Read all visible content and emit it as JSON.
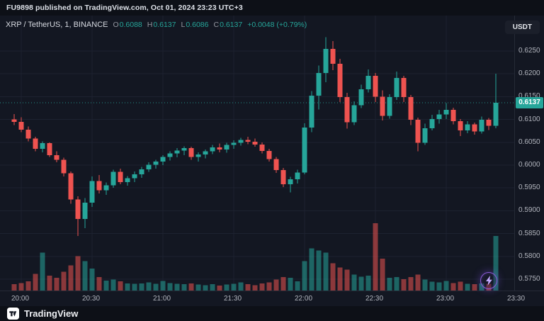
{
  "header": {
    "attribution": "FU9898 published on TradingView.com, Oct 01, 2024 23:23 UTC+3",
    "currency_button": "USDT"
  },
  "legend": {
    "symbol": "XRP / TetherUS, 1, BINANCE",
    "o_label": "O",
    "o_value": "0.6088",
    "h_label": "H",
    "h_value": "0.6137",
    "l_label": "L",
    "l_value": "0.6086",
    "c_label": "C",
    "c_value": "0.6137",
    "change": "+0.0048 (+0.79%)"
  },
  "price_axis": {
    "last_price_label": "0.6137"
  },
  "footer": {
    "brand": "TradingView"
  },
  "colors": {
    "up": "#26a69a",
    "down": "#ef5350",
    "vol_up": "rgba(38,166,154,0.55)",
    "vol_down": "rgba(239,83,80,0.55)",
    "grid": "#1d2230",
    "axis_text": "#b2b5be",
    "badge_bg": "#26a69a",
    "pane_bg": "#131722",
    "frame_bg": "#0d1017",
    "boost": "#8e5bd9"
  },
  "chart_data": {
    "type": "candlestick",
    "title": "XRP / TetherUS, 1, BINANCE",
    "symbol": "XRP / TetherUS",
    "interval": "1",
    "exchange": "BINANCE",
    "ohlc_legend": {
      "open": 0.6088,
      "high": 0.6137,
      "low": 0.6086,
      "close": 0.6137,
      "change": "+0.0048 (+0.79%)"
    },
    "last_price": 0.6137,
    "grid": true,
    "x_start": "19:57",
    "x_step_minutes": 3,
    "x_ticks": [
      "20:00",
      "20:30",
      "21:00",
      "21:30",
      "22:00",
      "22:30",
      "23:00",
      "23:30"
    ],
    "y_ticks": [
      0.625,
      0.62,
      0.615,
      0.61,
      0.605,
      0.6,
      0.595,
      0.59,
      0.585,
      0.58,
      0.575
    ],
    "ylim": [
      0.573,
      0.6328
    ],
    "candle_fields": [
      "open",
      "high",
      "low",
      "close",
      "volume"
    ],
    "candles": [
      [
        0.61,
        0.6112,
        0.6088,
        0.6095,
        150
      ],
      [
        0.6095,
        0.6105,
        0.6072,
        0.6078,
        180
      ],
      [
        0.6078,
        0.6085,
        0.6052,
        0.6058,
        220
      ],
      [
        0.6058,
        0.6062,
        0.603,
        0.6036,
        400
      ],
      [
        0.6036,
        0.6052,
        0.6028,
        0.6048,
        900
      ],
      [
        0.6048,
        0.605,
        0.6018,
        0.6022,
        350
      ],
      [
        0.6022,
        0.603,
        0.6006,
        0.6012,
        300
      ],
      [
        0.6012,
        0.6016,
        0.5975,
        0.5982,
        450
      ],
      [
        0.5982,
        0.5986,
        0.5915,
        0.5925,
        600
      ],
      [
        0.5925,
        0.5932,
        0.5845,
        0.5882,
        820
      ],
      [
        0.5882,
        0.5928,
        0.5862,
        0.5918,
        700
      ],
      [
        0.5918,
        0.5975,
        0.5908,
        0.5965,
        520
      ],
      [
        0.5965,
        0.5978,
        0.5938,
        0.5945,
        320
      ],
      [
        0.5945,
        0.5962,
        0.5935,
        0.5956,
        240
      ],
      [
        0.5956,
        0.599,
        0.595,
        0.5985,
        260
      ],
      [
        0.5985,
        0.5992,
        0.5958,
        0.5963,
        220
      ],
      [
        0.5963,
        0.5976,
        0.5955,
        0.5971,
        170
      ],
      [
        0.5971,
        0.5986,
        0.5963,
        0.598,
        160
      ],
      [
        0.598,
        0.5996,
        0.5972,
        0.5991,
        170
      ],
      [
        0.5991,
        0.6006,
        0.5985,
        0.6001,
        190
      ],
      [
        0.6001,
        0.6012,
        0.5992,
        0.6008,
        160
      ],
      [
        0.6008,
        0.6022,
        0.6,
        0.6018,
        230
      ],
      [
        0.6018,
        0.603,
        0.601,
        0.6026,
        180
      ],
      [
        0.6026,
        0.6037,
        0.6017,
        0.6032,
        160
      ],
      [
        0.6032,
        0.6041,
        0.6022,
        0.6037,
        150
      ],
      [
        0.6037,
        0.604,
        0.6012,
        0.6018,
        170
      ],
      [
        0.6018,
        0.6028,
        0.6008,
        0.6023,
        140
      ],
      [
        0.6023,
        0.6034,
        0.6015,
        0.603,
        130
      ],
      [
        0.603,
        0.6044,
        0.6024,
        0.6039,
        150
      ],
      [
        0.6039,
        0.6047,
        0.6028,
        0.6034,
        120
      ],
      [
        0.6034,
        0.6049,
        0.6027,
        0.6044,
        140
      ],
      [
        0.6044,
        0.6054,
        0.6036,
        0.6049,
        160
      ],
      [
        0.6049,
        0.606,
        0.6043,
        0.6055,
        190
      ],
      [
        0.6055,
        0.6062,
        0.6046,
        0.6051,
        150
      ],
      [
        0.6051,
        0.6058,
        0.604,
        0.6045,
        130
      ],
      [
        0.6045,
        0.605,
        0.6026,
        0.6031,
        170
      ],
      [
        0.6031,
        0.6036,
        0.6008,
        0.6013,
        190
      ],
      [
        0.6013,
        0.6018,
        0.5983,
        0.5989,
        260
      ],
      [
        0.5989,
        0.5994,
        0.5952,
        0.5958,
        320
      ],
      [
        0.5958,
        0.5974,
        0.594,
        0.5969,
        300
      ],
      [
        0.5969,
        0.599,
        0.596,
        0.5984,
        220
      ],
      [
        0.5984,
        0.6092,
        0.598,
        0.6082,
        700
      ],
      [
        0.6082,
        0.6162,
        0.6072,
        0.6152,
        1000
      ],
      [
        0.6152,
        0.6218,
        0.6122,
        0.6202,
        950
      ],
      [
        0.6202,
        0.628,
        0.6182,
        0.6255,
        900
      ],
      [
        0.6255,
        0.6272,
        0.6208,
        0.6222,
        650
      ],
      [
        0.6222,
        0.6233,
        0.6138,
        0.6149,
        550
      ],
      [
        0.6149,
        0.6158,
        0.608,
        0.6094,
        500
      ],
      [
        0.6094,
        0.614,
        0.6088,
        0.6131,
        380
      ],
      [
        0.6131,
        0.6176,
        0.6125,
        0.6166,
        330
      ],
      [
        0.6166,
        0.621,
        0.6159,
        0.6196,
        350
      ],
      [
        0.6196,
        0.6202,
        0.6138,
        0.615,
        1600
      ],
      [
        0.615,
        0.6164,
        0.6098,
        0.6108,
        760
      ],
      [
        0.6108,
        0.6155,
        0.6102,
        0.6149,
        300
      ],
      [
        0.6149,
        0.6205,
        0.6143,
        0.6191,
        320
      ],
      [
        0.6191,
        0.6196,
        0.6138,
        0.6149,
        270
      ],
      [
        0.6149,
        0.6154,
        0.6088,
        0.6099,
        320
      ],
      [
        0.6099,
        0.6104,
        0.603,
        0.6049,
        380
      ],
      [
        0.6049,
        0.6091,
        0.6044,
        0.6081,
        260
      ],
      [
        0.6081,
        0.611,
        0.6076,
        0.6101,
        210
      ],
      [
        0.6101,
        0.6121,
        0.6091,
        0.6111,
        190
      ],
      [
        0.6111,
        0.6136,
        0.6101,
        0.6121,
        230
      ],
      [
        0.6121,
        0.6126,
        0.6089,
        0.6096,
        180
      ],
      [
        0.6096,
        0.6101,
        0.6064,
        0.6076,
        210
      ],
      [
        0.6076,
        0.6096,
        0.607,
        0.6089,
        160
      ],
      [
        0.6089,
        0.6093,
        0.6067,
        0.6074,
        150
      ],
      [
        0.6074,
        0.6106,
        0.6069,
        0.6099,
        170
      ],
      [
        0.6099,
        0.6103,
        0.6077,
        0.6086,
        160
      ],
      [
        0.6086,
        0.62,
        0.6081,
        0.6137,
        1300
      ]
    ]
  }
}
